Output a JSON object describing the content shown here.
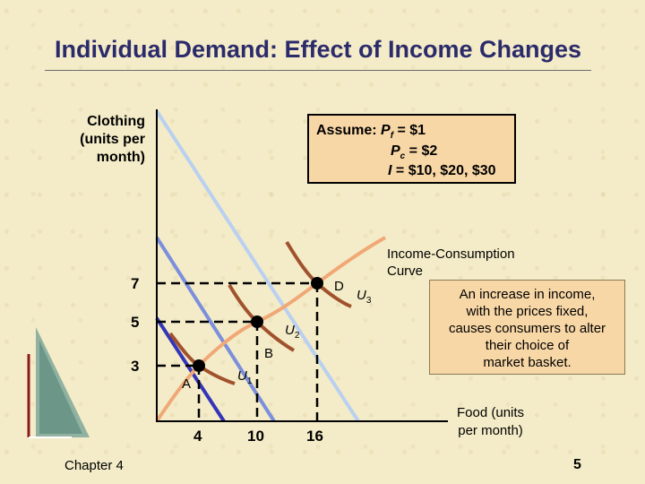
{
  "title": "Individual Demand: Effect of Income Changes",
  "y_axis_label": [
    "Clothing",
    "(units per",
    "month)"
  ],
  "x_axis_label": [
    "Food (units",
    "per month)"
  ],
  "assume": {
    "prefix": "Assume: ",
    "pf_symbol": "P",
    "pf_sub": "f",
    "pf_value": " = $1",
    "pc_symbol": "P",
    "pc_sub": "c",
    "pc_value": " = $2",
    "i_symbol": "I",
    "i_value": " = $10, $20, $30"
  },
  "icc_label": [
    "Income-Consumption",
    "Curve"
  ],
  "note": [
    "An increase in income,",
    "with the prices fixed,",
    "causes consumers to alter",
    "their choice of",
    "market basket."
  ],
  "x_ticks": [
    "4",
    "10",
    "16"
  ],
  "y_ticks": [
    "3",
    "5",
    "7"
  ],
  "points": [
    {
      "label": "A",
      "food": 4,
      "clothing": 3
    },
    {
      "label": "B",
      "food": 10,
      "clothing": 5
    },
    {
      "label": "D",
      "food": 16,
      "clothing": 7
    }
  ],
  "curves": {
    "u1": {
      "symbol": "U",
      "sub": "1"
    },
    "u2": {
      "symbol": "U",
      "sub": "2"
    },
    "u3": {
      "symbol": "U",
      "sub": "3"
    }
  },
  "footer": {
    "chapter": "Chapter 4",
    "page": "5"
  },
  "colors": {
    "title": "#2b2b6b",
    "budget_line_low": "#3535b8",
    "budget_line_high": "#b9d0f0",
    "indifference": "#a0522d",
    "icc": "#f0a877",
    "box": "#f8d7a6"
  }
}
